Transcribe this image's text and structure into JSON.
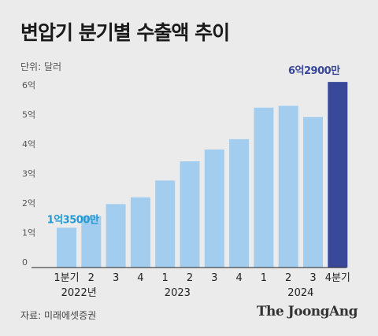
{
  "title": "변압기 분기별 수출액 추이",
  "unit_label": "단위: 달러",
  "source": "자료: 미래에셋증권",
  "brand": "The JoongAng",
  "colors": {
    "bar": "#a3cdee",
    "bar_highlight": "#3a4899",
    "label_first": "#1f9ad6",
    "label_last": "#3a4899"
  },
  "chart_data": {
    "type": "bar",
    "title": "변압기 분기별 수출액 추이",
    "ylabel": "단위: 달러",
    "ylim": [
      0,
      6.5
    ],
    "grid": false,
    "y_ticks": [
      {
        "value": 0,
        "label": "0"
      },
      {
        "value": 1,
        "label": "1억"
      },
      {
        "value": 2,
        "label": "2억"
      },
      {
        "value": 3,
        "label": "3억"
      },
      {
        "value": 4,
        "label": "4억"
      },
      {
        "value": 5,
        "label": "5억"
      },
      {
        "value": 6,
        "label": "6억"
      }
    ],
    "categories": [
      "1분기",
      "2",
      "3",
      "4",
      "1",
      "2",
      "3",
      "4",
      "1",
      "2",
      "3",
      "4분기"
    ],
    "values": [
      1.35,
      1.75,
      2.15,
      2.38,
      2.95,
      3.6,
      4.0,
      4.35,
      5.42,
      5.48,
      5.1,
      6.29
    ],
    "year_labels": [
      {
        "label": "2022년",
        "start": 0,
        "end": 1
      },
      {
        "label": "2023",
        "start": 2,
        "end": 7
      },
      {
        "label": "2024",
        "start": 8,
        "end": 11
      }
    ],
    "data_labels": [
      {
        "index": 0,
        "text": "1억3500만"
      },
      {
        "index": 11,
        "text": "6억2900만"
      }
    ],
    "highlight_index": 11
  }
}
